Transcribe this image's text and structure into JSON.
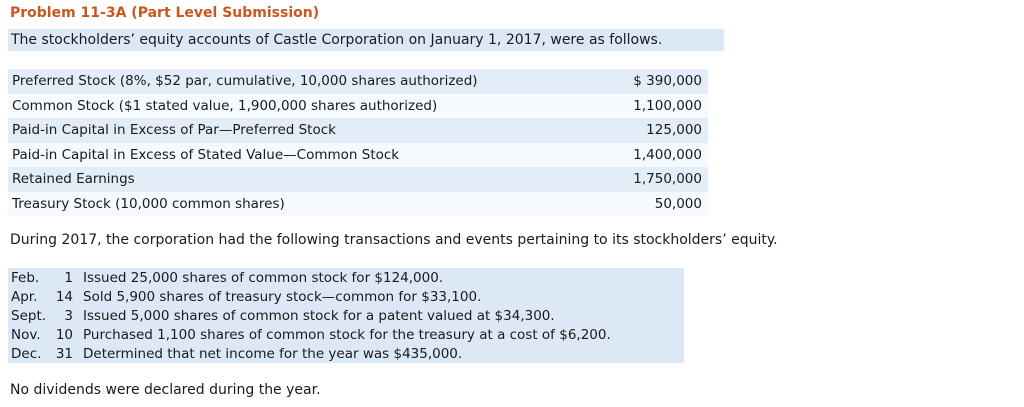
{
  "title": "Problem 11-3A (Part Level Submission)",
  "intro": "The stockholders’ equity accounts of Castle Corporation on January 1, 2017, were as follows.",
  "accounts": [
    {
      "name": "Preferred Stock (8%, $52 par, cumulative, 10,000 shares authorized)",
      "amount": "$ 390,000"
    },
    {
      "name": "Common Stock ($1 stated value, 1,900,000 shares authorized)",
      "amount": "1,100,000"
    },
    {
      "name": "Paid-in Capital in Excess of Par—Preferred Stock",
      "amount": "125,000"
    },
    {
      "name": "Paid-in Capital in Excess of Stated Value—Common Stock",
      "amount": "1,400,000"
    },
    {
      "name": "Retained Earnings",
      "amount": "1,750,000"
    },
    {
      "name": "Treasury Stock (10,000 common shares)",
      "amount": "50,000"
    }
  ],
  "during_text": "During 2017, the corporation had the following transactions and events pertaining to its stockholders’ equity.",
  "transactions": [
    {
      "month": "Feb.",
      "day": "1",
      "desc": "Issued 25,000 shares of common stock for $124,000."
    },
    {
      "month": "Apr.",
      "day": "14",
      "desc": "Sold 5,900 shares of treasury stock—common for $33,100."
    },
    {
      "month": "Sept.",
      "day": "3",
      "desc": "Issued 5,000 shares of common stock for a patent valued at $34,300."
    },
    {
      "month": "Nov.",
      "day": "10",
      "desc": "Purchased 1,100 shares of common stock for the treasury at a cost of $6,200."
    },
    {
      "month": "Dec.",
      "day": "31",
      "desc": "Determined that net income for the year was $435,000."
    }
  ],
  "closing_text": "No dividends were declared during the year."
}
